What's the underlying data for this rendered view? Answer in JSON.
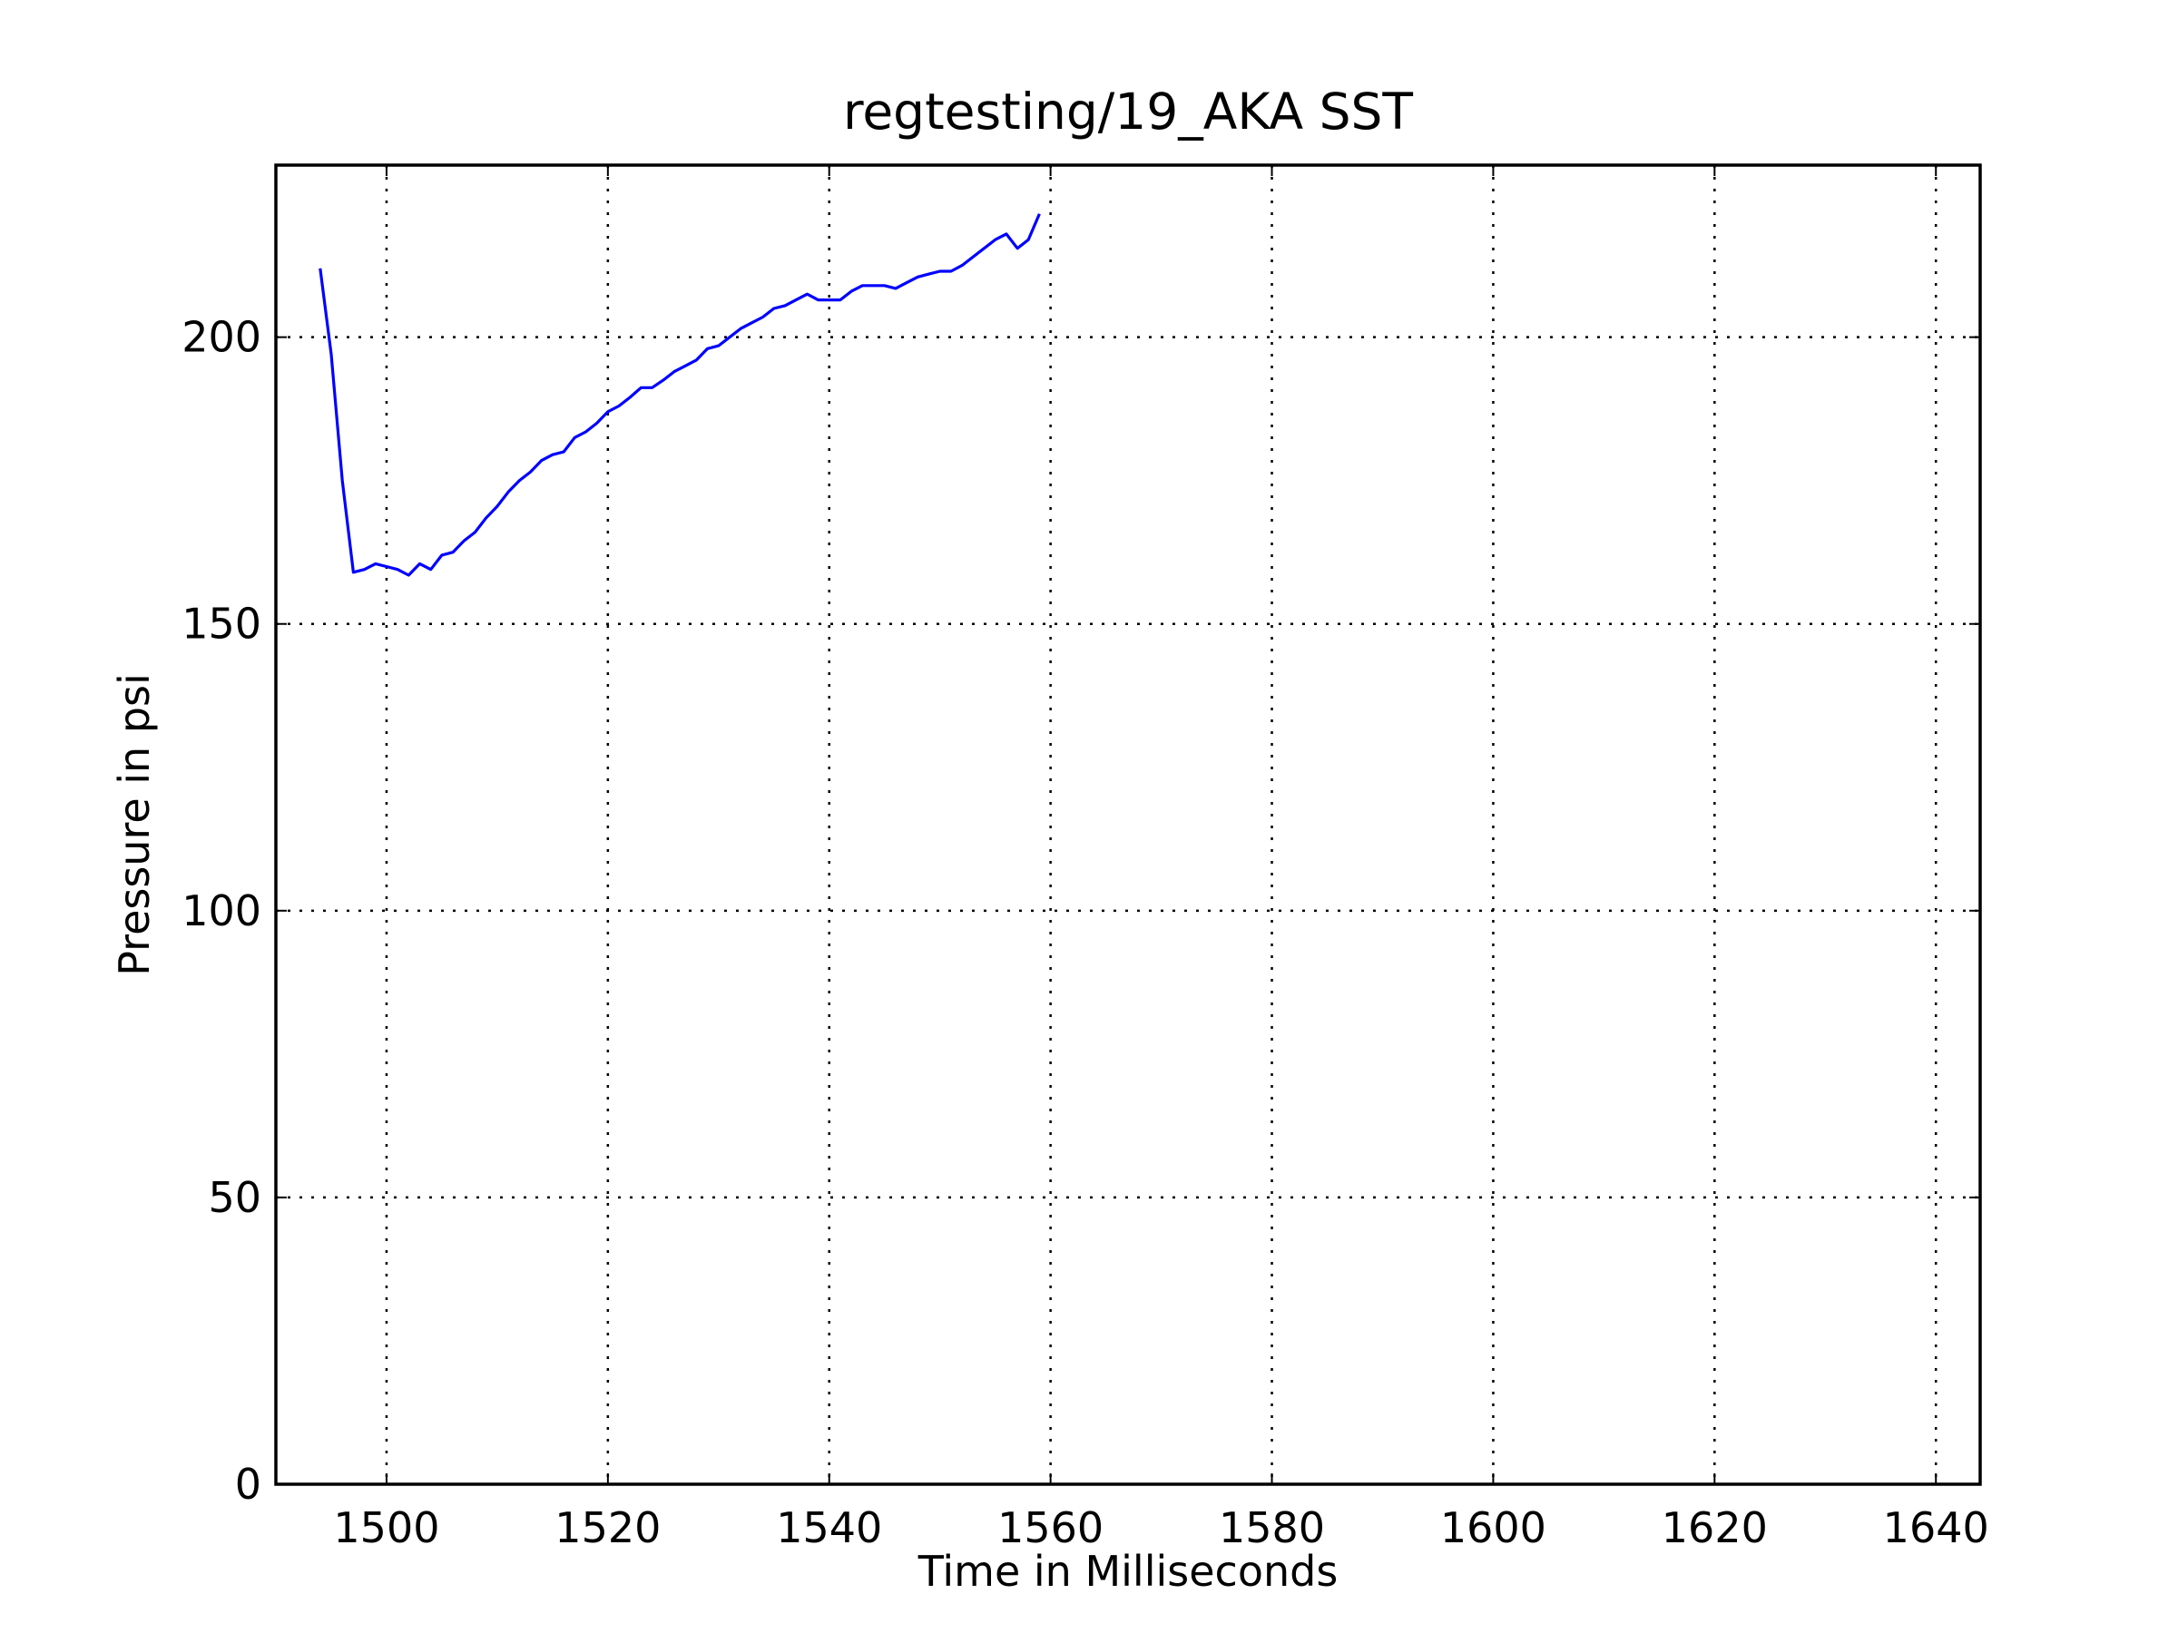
{
  "chart_data": {
    "type": "line",
    "title": "regtesting/19_AKA SST",
    "xlabel": "Time in Milliseconds",
    "ylabel": "Pressure in psi",
    "xlim": [
      1490,
      1644
    ],
    "ylim": [
      0,
      230
    ],
    "xticks": [
      1500,
      1520,
      1540,
      1560,
      1580,
      1600,
      1620,
      1640
    ],
    "yticks": [
      0,
      50,
      100,
      150,
      200
    ],
    "grid": true,
    "colors": {
      "series": "#0000ff",
      "axes": "#000000",
      "background": "#ffffff"
    },
    "series": [
      {
        "color": "#0000ff",
        "x": [
          1494,
          1495,
          1496,
          1497,
          1498,
          1499,
          1500,
          1501,
          1502,
          1503,
          1504,
          1505,
          1506,
          1507,
          1508,
          1509,
          1510,
          1511,
          1512,
          1513,
          1514,
          1515,
          1516,
          1517,
          1518,
          1519,
          1520,
          1521,
          1522,
          1523,
          1524,
          1525,
          1526,
          1527,
          1528,
          1529,
          1530,
          1531,
          1532,
          1533,
          1534,
          1535,
          1536,
          1537,
          1538,
          1539,
          1540,
          1541,
          1542,
          1543,
          1544,
          1545,
          1546,
          1547,
          1548,
          1549,
          1550,
          1551,
          1552,
          1553,
          1554,
          1555,
          1556,
          1557,
          1558,
          1559
        ],
        "y": [
          212,
          197,
          175,
          159,
          159.5,
          160.5,
          160,
          159.5,
          158.5,
          160.5,
          159.5,
          162,
          162.5,
          164.5,
          166,
          168.5,
          170.5,
          173,
          175,
          176.5,
          178.5,
          179.5,
          180,
          182.5,
          183.5,
          185,
          187,
          188,
          189.5,
          191.2,
          191.2,
          192.5,
          194,
          195,
          196,
          198,
          198.5,
          200,
          201.5,
          202.5,
          203.5,
          205,
          205.5,
          206.5,
          207.5,
          206.5,
          206.5,
          206.5,
          208,
          209,
          209,
          209,
          208.5,
          209.5,
          210.5,
          211,
          211.5,
          211.5,
          212.5,
          214,
          215.5,
          217,
          218,
          215.5,
          217,
          221.5
        ]
      }
    ]
  }
}
